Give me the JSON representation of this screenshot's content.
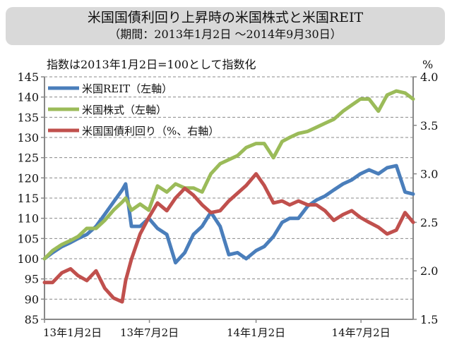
{
  "chart_data": {
    "type": "line",
    "title": "米国国債利回り上昇時の米国株式と米国REIT",
    "subtitle": "（期間：2013年1月2日 ～2014年9月30日）",
    "note": "指数は2013年1月2日=100として指数化",
    "y2_unit": "%",
    "xlim": [
      "2013-01-02",
      "2014-09-30"
    ],
    "x_ticks": [
      {
        "date": "2013-01-02",
        "label": "13年1月2日"
      },
      {
        "date": "2013-07-02",
        "label": "13年7月2日"
      },
      {
        "date": "2014-01-02",
        "label": "14年1月2日"
      },
      {
        "date": "2014-07-02",
        "label": "14年7月2日"
      }
    ],
    "ylim": [
      85,
      145
    ],
    "y_ticks": [
      "85",
      "90",
      "95",
      "100",
      "105",
      "110",
      "115",
      "120",
      "125",
      "130",
      "135",
      "140",
      "145"
    ],
    "y2lim": [
      1.5,
      4.0
    ],
    "y2_ticks": [
      "1.5",
      "2.0",
      "2.5",
      "3.0",
      "3.5",
      "4.0"
    ],
    "grid": "horizontal dashed",
    "legend": "top-left",
    "x": [
      "2013-01-02",
      "2013-01-16",
      "2013-02-01",
      "2013-02-16",
      "2013-03-01",
      "2013-03-16",
      "2013-04-01",
      "2013-04-16",
      "2013-05-01",
      "2013-05-16",
      "2013-05-22",
      "2013-06-01",
      "2013-06-16",
      "2013-07-01",
      "2013-07-16",
      "2013-08-01",
      "2013-08-16",
      "2013-09-01",
      "2013-09-16",
      "2013-10-01",
      "2013-10-16",
      "2013-11-01",
      "2013-11-16",
      "2013-12-01",
      "2013-12-16",
      "2014-01-02",
      "2014-01-16",
      "2014-02-01",
      "2014-02-16",
      "2014-03-01",
      "2014-03-16",
      "2014-04-01",
      "2014-04-16",
      "2014-05-01",
      "2014-05-16",
      "2014-06-01",
      "2014-06-16",
      "2014-07-01",
      "2014-07-16",
      "2014-08-01",
      "2014-08-16",
      "2014-09-01",
      "2014-09-16",
      "2014-09-30"
    ],
    "series": [
      {
        "name": "米国REIT（左軸）",
        "axis": "left",
        "color": "#4a7ebb",
        "values": [
          100,
          101.5,
          103,
          104,
          105,
          106,
          108,
          111,
          114,
          117,
          118.5,
          108,
          108,
          110,
          107.5,
          106,
          99,
          101.5,
          106,
          108,
          111.5,
          108,
          101,
          101.5,
          100,
          102,
          103,
          105.5,
          109,
          110,
          110,
          113,
          114.5,
          115.5,
          117,
          118.5,
          119.5,
          121,
          122,
          121,
          122.5,
          123,
          116.5,
          116
        ]
      },
      {
        "name": "米国株式（左軸）",
        "axis": "left",
        "color": "#9bbb59",
        "values": [
          100,
          102,
          103.5,
          104.5,
          105.5,
          107.5,
          107.5,
          109.5,
          112,
          114,
          115,
          112,
          113.5,
          112,
          118,
          116.5,
          118.5,
          117.5,
          117.5,
          116.5,
          121,
          123.5,
          124.5,
          125.5,
          127.5,
          128.5,
          128.5,
          125,
          129,
          130,
          131,
          131.5,
          132.5,
          133.5,
          134.5,
          136.5,
          138,
          139.5,
          139.5,
          136.5,
          140.5,
          141.5,
          141,
          139.5
        ]
      },
      {
        "name": "米国国債利回り（%、右軸）",
        "axis": "right",
        "color": "#c0504d",
        "values": [
          1.88,
          1.88,
          1.98,
          2.02,
          1.95,
          1.9,
          2.0,
          1.82,
          1.72,
          1.68,
          1.9,
          2.12,
          2.38,
          2.55,
          2.7,
          2.62,
          2.75,
          2.85,
          2.78,
          2.68,
          2.6,
          2.62,
          2.72,
          2.8,
          2.88,
          3.0,
          2.88,
          2.7,
          2.72,
          2.68,
          2.72,
          2.68,
          2.68,
          2.62,
          2.52,
          2.58,
          2.62,
          2.55,
          2.5,
          2.45,
          2.38,
          2.42,
          2.6,
          2.5
        ]
      }
    ]
  }
}
